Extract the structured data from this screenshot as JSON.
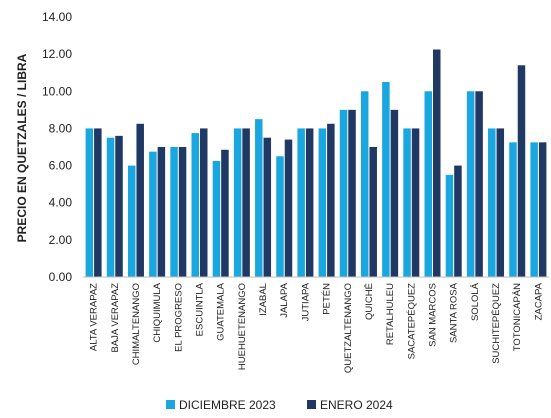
{
  "chart_data": {
    "type": "bar",
    "ylabel": "PRECIO EN QUETZALES / LIBRA",
    "xlabel": "",
    "title": "",
    "ylim": [
      0,
      14
    ],
    "yticks": [
      "0.00",
      "2.00",
      "4.00",
      "6.00",
      "8.00",
      "10.00",
      "12.00",
      "14.00"
    ],
    "grid": false,
    "legend_position": "bottom",
    "categories": [
      "ALTA VERAPAZ",
      "BAJA VERAPAZ",
      "CHIMALTENANGO",
      "CHIQUIMULA",
      "EL PROGRESO",
      "ESCUINTLA",
      "GUATEMALA",
      "HUEHUETENANGO",
      "IZABAL",
      "JALAPA",
      "JUTIAPA",
      "PETÉN",
      "QUETZALTENANGO",
      "QUICHÉ",
      "RETALHULEU",
      "SACATEPÉQUEZ",
      "SAN MARCOS",
      "SANTA ROSA",
      "SOLOLÁ",
      "SUCHITEPÉQUEZ",
      "TOTONICAPÁN",
      "ZACAPA"
    ],
    "series": [
      {
        "name": "DICIEMBRE 2023",
        "color": "#1aa7e0",
        "values": [
          8.0,
          7.5,
          6.0,
          6.75,
          7.0,
          7.75,
          6.25,
          8.0,
          8.5,
          6.5,
          8.0,
          8.0,
          9.0,
          10.0,
          10.5,
          8.0,
          10.0,
          5.5,
          10.0,
          8.0,
          7.25,
          7.25
        ]
      },
      {
        "name": "ENERO 2024",
        "color": "#203864",
        "values": [
          8.0,
          7.6,
          8.25,
          7.0,
          7.0,
          8.0,
          6.85,
          8.0,
          7.5,
          7.4,
          8.0,
          8.25,
          9.0,
          7.0,
          9.0,
          8.0,
          12.25,
          6.0,
          10.0,
          8.0,
          11.4,
          7.25
        ]
      }
    ]
  }
}
